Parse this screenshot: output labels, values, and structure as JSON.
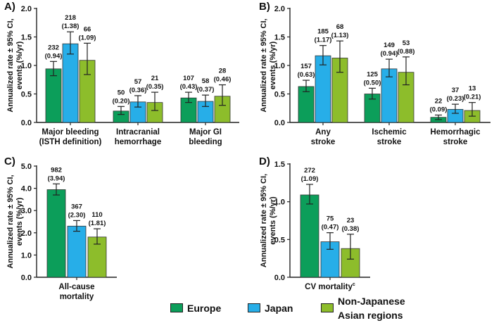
{
  "colors": {
    "europe": "#0c9e5a",
    "japan": "#27aee8",
    "non_japanese_asian": "#8dbd2b"
  },
  "legend": {
    "items": [
      {
        "key": "europe",
        "line1": "Europe",
        "line2": ""
      },
      {
        "key": "japan",
        "line1": "Japan",
        "line2": ""
      },
      {
        "key": "non_japanese_asian",
        "line1": "Non-Japanese",
        "line2": "Asian regions"
      }
    ]
  },
  "chart_data": [
    {
      "panel": "A)",
      "type": "bar",
      "ylabel_line1": "Annualized rate ± 95% CI,",
      "ylabel_line2": "events (%/yr)",
      "ylim": [
        0,
        2.0
      ],
      "yticks": [
        "0.0",
        "0.5",
        "1.0",
        "1.5",
        "2.0"
      ],
      "categories": [
        [
          "Major bleeding",
          "(ISTH definition)"
        ],
        [
          "Intracranial",
          "hemorrhage"
        ],
        [
          "Major GI",
          "bleeding"
        ]
      ],
      "series": [
        {
          "name": "Europe",
          "values": [
            0.94,
            0.2,
            0.43
          ],
          "ci_low": [
            0.82,
            0.14,
            0.35
          ],
          "ci_high": [
            1.07,
            0.28,
            0.53
          ],
          "events": [
            "232",
            "50",
            "107"
          ],
          "rates": [
            "(0.94)",
            "(0.20)",
            "(0.43)"
          ]
        },
        {
          "name": "Japan",
          "values": [
            1.38,
            0.36,
            0.37
          ],
          "ci_low": [
            1.2,
            0.27,
            0.28
          ],
          "ci_high": [
            1.59,
            0.47,
            0.48
          ],
          "events": [
            "218",
            "57",
            "58"
          ],
          "rates": [
            "(1.38)",
            "(0.36)",
            "(0.37)"
          ]
        },
        {
          "name": "Non-Japanese Asian regions",
          "values": [
            1.09,
            0.35,
            0.46
          ],
          "ci_low": [
            0.84,
            0.21,
            0.3
          ],
          "ci_high": [
            1.39,
            0.53,
            0.66
          ],
          "events": [
            "66",
            "21",
            "28"
          ],
          "rates": [
            "(1.09)",
            "(0.35)",
            "(0.46)"
          ]
        }
      ]
    },
    {
      "panel": "B)",
      "type": "bar",
      "ylabel_line1": "Annualized rate ± 95% CI,",
      "ylabel_line2": "events (%/yr)",
      "ylim": [
        0,
        2.0
      ],
      "yticks": [
        "0.0",
        "0.5",
        "1.0",
        "1.5",
        "2.0"
      ],
      "categories": [
        [
          "Any",
          "stroke"
        ],
        [
          "Ischemic",
          "stroke"
        ],
        [
          "Hemorrhagic",
          "stroke"
        ]
      ],
      "series": [
        {
          "name": "Europe",
          "values": [
            0.63,
            0.5,
            0.09
          ],
          "ci_low": [
            0.54,
            0.41,
            0.05
          ],
          "ci_high": [
            0.74,
            0.6,
            0.13
          ],
          "events": [
            "157",
            "125",
            "22"
          ],
          "rates": [
            "(0.63)",
            "(0.50)",
            "(0.09)"
          ]
        },
        {
          "name": "Japan",
          "values": [
            1.17,
            0.94,
            0.23
          ],
          "ci_low": [
            1.01,
            0.8,
            0.16
          ],
          "ci_high": [
            1.35,
            1.11,
            0.32
          ],
          "events": [
            "185",
            "149",
            "37"
          ],
          "rates": [
            "(1.17)",
            "(0.94)",
            "(0.23)"
          ]
        },
        {
          "name": "Non-Japanese Asian regions",
          "values": [
            1.13,
            0.88,
            0.21
          ],
          "ci_low": [
            0.88,
            0.66,
            0.11
          ],
          "ci_high": [
            1.43,
            1.15,
            0.35
          ],
          "events": [
            "68",
            "53",
            "13"
          ],
          "rates": [
            "(1.13)",
            "(0.88)",
            "(0.21)"
          ]
        }
      ]
    },
    {
      "panel": "C)",
      "type": "bar",
      "ylabel_line1": "Annualized rate ± 95% CI,",
      "ylabel_line2": "events (%/yr)",
      "ylim": [
        0,
        5.0
      ],
      "yticks": [
        "0.0",
        "1.0",
        "2.0",
        "3.0",
        "4.0",
        "5.0"
      ],
      "categories": [
        [
          "All-cause",
          "mortality"
        ]
      ],
      "series": [
        {
          "name": "Europe",
          "values": [
            3.94
          ],
          "ci_low": [
            3.7
          ],
          "ci_high": [
            4.2
          ],
          "events": [
            "982"
          ],
          "rates": [
            "(3.94)"
          ]
        },
        {
          "name": "Japan",
          "values": [
            2.3
          ],
          "ci_low": [
            2.07
          ],
          "ci_high": [
            2.55
          ],
          "events": [
            "367"
          ],
          "rates": [
            "(2.30)"
          ]
        },
        {
          "name": "Non-Japanese Asian regions",
          "values": [
            1.81
          ],
          "ci_low": [
            1.49
          ],
          "ci_high": [
            2.18
          ],
          "events": [
            "110"
          ],
          "rates": [
            "(1.81)"
          ]
        }
      ]
    },
    {
      "panel": "D)",
      "type": "bar",
      "ylabel_line1": "Annualized rate ± 95% CI,",
      "ylabel_line2": "events (%/yr)",
      "ylim": [
        0,
        1.5
      ],
      "yticks": [
        "0.0",
        "0.5",
        "1.0",
        "1.5"
      ],
      "categories": [
        [
          "CV mortality",
          ""
        ]
      ],
      "category_superscript": "c",
      "series": [
        {
          "name": "Europe",
          "values": [
            1.09
          ],
          "ci_low": [
            0.97
          ],
          "ci_high": [
            1.23
          ],
          "events": [
            "272"
          ],
          "rates": [
            "(1.09)"
          ]
        },
        {
          "name": "Japan",
          "values": [
            0.47
          ],
          "ci_low": [
            0.37
          ],
          "ci_high": [
            0.59
          ],
          "events": [
            "75"
          ],
          "rates": [
            "(0.47)"
          ]
        },
        {
          "name": "Non-Japanese Asian regions",
          "values": [
            0.38
          ],
          "ci_low": [
            0.24
          ],
          "ci_high": [
            0.57
          ],
          "events": [
            "23"
          ],
          "rates": [
            "(0.38)"
          ]
        }
      ]
    }
  ]
}
